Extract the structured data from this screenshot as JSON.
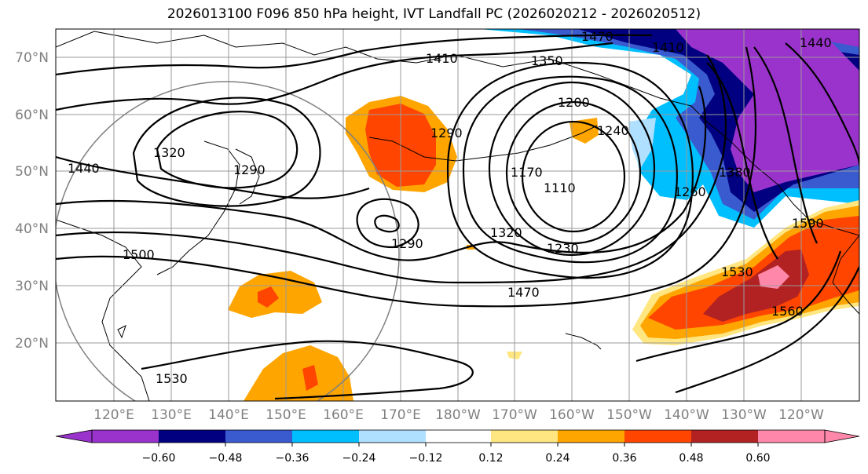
{
  "title": "2026013100 F096 850 hPa height, IVT Landfall PC (2026020212 - 2026020512)",
  "map": {
    "lat_labels": [
      "70°N",
      "60°N",
      "50°N",
      "40°N",
      "30°N",
      "20°N"
    ],
    "lon_labels": [
      "120°E",
      "130°E",
      "140°E",
      "150°E",
      "160°E",
      "170°E",
      "180°W",
      "170°W",
      "160°W",
      "150°W",
      "140°W",
      "130°W",
      "120°W"
    ],
    "contour_labels": [
      "1470",
      "1410",
      "1350",
      "1200",
      "1410",
      "1440",
      "1320",
      "1290",
      "1290",
      "1240",
      "1170",
      "1110",
      "1260",
      "1380",
      "1440",
      "1290",
      "1320",
      "1230",
      "1500",
      "1470",
      "1530",
      "1530",
      "1560",
      "1590"
    ]
  },
  "colorbar": {
    "colors": [
      "#9933cc",
      "#000080",
      "#3a5bd0",
      "#00bfff",
      "#b0e0ff",
      "#ffffff",
      "#ffe680",
      "#ffa500",
      "#ff4500",
      "#b22222",
      "#ff88aa"
    ],
    "tick_labels": [
      "−0.60",
      "−0.48",
      "−0.36",
      "−0.24",
      "−0.12",
      "0.12",
      "0.24",
      "0.36",
      "0.48",
      "0.60"
    ]
  },
  "chart_data": {
    "type": "heatmap",
    "title": "2026013100 F096 850 hPa height, IVT Landfall PC (2026020212 - 2026020512)",
    "levels": [
      -0.6,
      -0.48,
      -0.36,
      -0.24,
      -0.12,
      0.12,
      0.24,
      0.36,
      0.48,
      0.6
    ],
    "extend": "both",
    "lat_range": [
      10,
      75
    ],
    "lon_range": [
      110,
      250
    ],
    "contour_levels_shown": [
      1110,
      1170,
      1200,
      1230,
      1240,
      1260,
      1290,
      1320,
      1350,
      1380,
      1410,
      1440,
      1470,
      1500,
      1530,
      1560,
      1590
    ],
    "grid": true
  }
}
